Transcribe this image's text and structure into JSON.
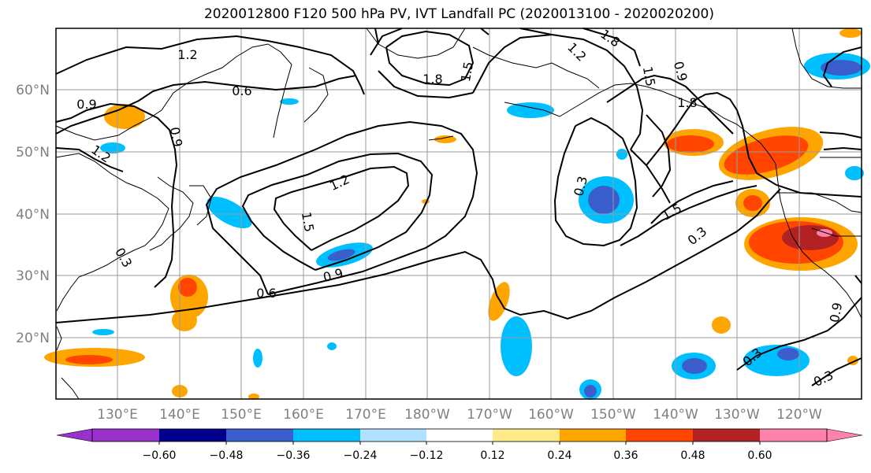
{
  "title": "2020012800 F120 500 hPa PV, IVT Landfall PC (2020013100 - 2020020200)",
  "lat_labels": [
    "60°N",
    "50°N",
    "40°N",
    "30°N",
    "20°N"
  ],
  "lon_labels": [
    "130°E",
    "140°E",
    "150°E",
    "160°E",
    "170°E",
    "180°W",
    "170°W",
    "160°W",
    "150°W",
    "140°W",
    "130°W",
    "120°W"
  ],
  "colorbar": {
    "colors": [
      "#9932cc",
      "#00008b",
      "#3a5fcd",
      "#00bfff",
      "#b0e2ff",
      "#ffffff",
      "#ffea8a",
      "#ffa500",
      "#ff4500",
      "#b22222",
      "#ff82ab"
    ],
    "under_color": "#9932cc",
    "over_color": "#ff82ab",
    "ticks": [
      "−0.60",
      "−0.48",
      "−0.36",
      "−0.24",
      "−0.12",
      "0.12",
      "0.24",
      "0.36",
      "0.48",
      "0.60"
    ]
  },
  "contour_labels": [
    "1.2",
    "0.9",
    "0.6",
    "0.9",
    "1.2",
    "1.8",
    "1.5",
    "1.2",
    "1.8",
    "1.5",
    "0.9",
    "1.8",
    "0.3",
    "1.5",
    "0.3",
    "1.2",
    "1.5",
    "0.9",
    "0.6",
    "0.3",
    "0.3",
    "0.9",
    "0.3"
  ]
}
